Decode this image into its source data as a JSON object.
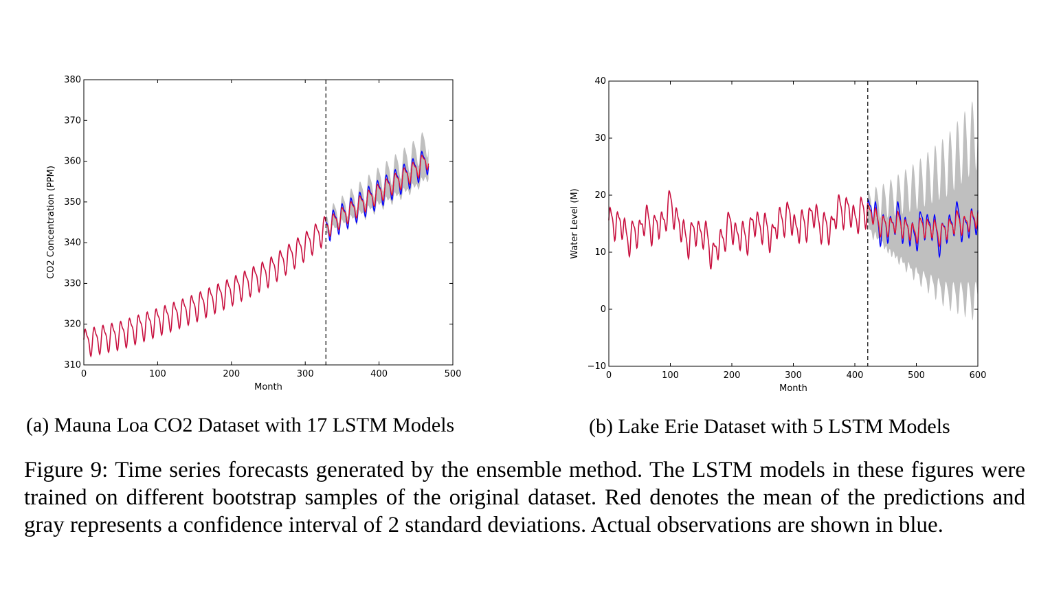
{
  "figure_caption": "Figure 9: Time series forecasts generated by the ensemble method. The LSTM models in these figures were trained on different bootstrap samples of the original dataset. Red denotes the mean of the predictions and gray represents a confidence interval of 2 standard deviations. Actual observations are shown in blue.",
  "colors": {
    "mean_prediction": "#e8142a",
    "observed": "#0000ff",
    "overlap": "#c8103f",
    "confidence_band": "#bfbfbf"
  },
  "chart_data": [
    {
      "type": "line",
      "subcaption": "(a) Mauna Loa CO2 Dataset with 17 LSTM Models",
      "xlabel": "Month",
      "ylabel": "CO2 Concentration (PPM)",
      "xlim": [
        0,
        500
      ],
      "ylim": [
        310,
        380
      ],
      "xticks": [
        0,
        100,
        200,
        300,
        400,
        500
      ],
      "yticks": [
        310,
        320,
        330,
        340,
        350,
        360,
        370,
        380
      ],
      "forecast_start_month": 328,
      "data_end_month": 467,
      "ensemble_size": 17,
      "trend_points": {
        "x": [
          0,
          50,
          100,
          150,
          200,
          250,
          300,
          328,
          350,
          400,
          450,
          467
        ],
        "y": [
          315.6,
          317.6,
          320.8,
          324.2,
          328.3,
          332.9,
          339.4,
          343.6,
          346.5,
          352.4,
          358.0,
          360.8
        ]
      },
      "seasonal_amplitude": 3.0,
      "period_months": 12,
      "forecast_band_halfwidth": [
        2.5,
        6.0
      ],
      "grid": false,
      "legend": "none"
    },
    {
      "type": "line",
      "subcaption": "(b) Lake Erie Dataset with 5 LSTM Models",
      "xlabel": "Month",
      "ylabel": "Water Level (M)",
      "xlim": [
        0,
        600
      ],
      "ylim": [
        -10,
        40
      ],
      "xticks": [
        0,
        100,
        200,
        300,
        400,
        500,
        600
      ],
      "yticks": [
        -10,
        0,
        10,
        20,
        30,
        40
      ],
      "forecast_start_month": 421,
      "data_end_month": 600,
      "ensemble_size": 5,
      "trend_points": {
        "x": [
          0,
          50,
          100,
          120,
          150,
          170,
          200,
          250,
          300,
          350,
          400,
          421,
          450,
          500,
          550,
          600
        ],
        "y": [
          14.5,
          13.5,
          17.0,
          14.0,
          12.5,
          11.0,
          13.5,
          14.0,
          15.5,
          15.0,
          17.5,
          16.5,
          15.0,
          14.0,
          14.0,
          16.5
        ]
      },
      "seasonal_amplitude": 2.2,
      "period_months": 12,
      "forecast_band_halfwidth": [
        3.0,
        20.0
      ],
      "grid": false,
      "legend": "none"
    }
  ]
}
